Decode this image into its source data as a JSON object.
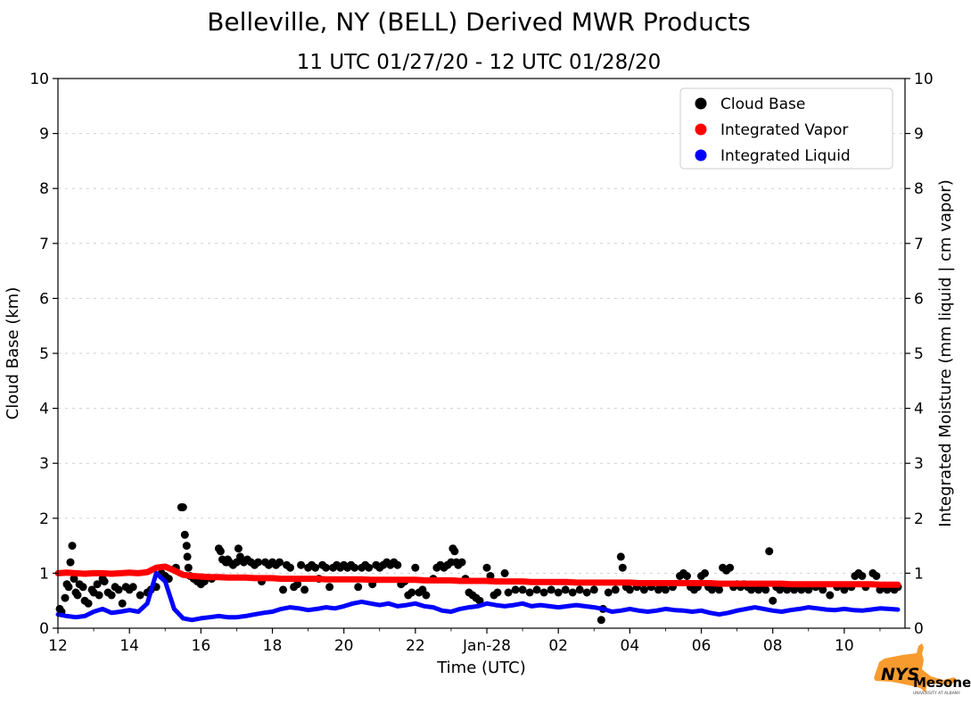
{
  "chart_data": {
    "type": "scatter",
    "title": "Belleville, NY (BELL) Derived MWR Products",
    "subtitle": "11 UTC 01/27/20 - 12 UTC 01/28/20",
    "xlabel": "Time (UTC)",
    "ylabel_left": "Cloud Base (km)",
    "ylabel_right": "Integrated Moisture (mm liquid | cm vapor)",
    "xlim": [
      12,
      35.7
    ],
    "ylim": [
      0,
      10
    ],
    "grid": "horizontal-dashed",
    "xticks": [
      {
        "v": 12,
        "label": "12"
      },
      {
        "v": 14,
        "label": "14"
      },
      {
        "v": 16,
        "label": "16"
      },
      {
        "v": 18,
        "label": "18"
      },
      {
        "v": 20,
        "label": "20"
      },
      {
        "v": 22,
        "label": "22"
      },
      {
        "v": 24,
        "label": "Jan-28"
      },
      {
        "v": 26,
        "label": "02"
      },
      {
        "v": 28,
        "label": "04"
      },
      {
        "v": 30,
        "label": "06"
      },
      {
        "v": 32,
        "label": "08"
      },
      {
        "v": 34,
        "label": "10"
      }
    ],
    "yticks": [
      0,
      1,
      2,
      3,
      4,
      5,
      6,
      7,
      8,
      9,
      10
    ],
    "legend": {
      "position": "upper-right",
      "entries": [
        {
          "label": "Cloud Base",
          "color": "#000000"
        },
        {
          "label": "Integrated Vapor",
          "color": "#ff0000"
        },
        {
          "label": "Integrated Liquid",
          "color": "#0000ff"
        }
      ]
    },
    "series": [
      {
        "name": "Cloud Base",
        "kind": "scatter",
        "color": "#000000",
        "marker_size": 4.5,
        "points": [
          [
            12.05,
            0.35
          ],
          [
            12.1,
            0.3
          ],
          [
            12.2,
            0.55
          ],
          [
            12.25,
            0.8
          ],
          [
            12.3,
            0.75
          ],
          [
            12.35,
            1.2
          ],
          [
            12.4,
            1.5
          ],
          [
            12.45,
            0.9
          ],
          [
            12.5,
            0.65
          ],
          [
            12.55,
            0.6
          ],
          [
            12.6,
            0.8
          ],
          [
            12.7,
            0.75
          ],
          [
            12.75,
            0.5
          ],
          [
            12.85,
            0.45
          ],
          [
            12.95,
            0.7
          ],
          [
            13.0,
            0.65
          ],
          [
            13.1,
            0.8
          ],
          [
            13.15,
            0.6
          ],
          [
            13.25,
            0.9
          ],
          [
            13.3,
            0.85
          ],
          [
            13.4,
            0.65
          ],
          [
            13.5,
            0.6
          ],
          [
            13.6,
            0.75
          ],
          [
            13.7,
            0.7
          ],
          [
            13.8,
            0.45
          ],
          [
            13.9,
            0.75
          ],
          [
            14.0,
            0.7
          ],
          [
            14.1,
            0.75
          ],
          [
            14.3,
            0.6
          ],
          [
            14.5,
            0.65
          ],
          [
            14.6,
            0.7
          ],
          [
            14.75,
            0.75
          ],
          [
            14.9,
            1.0
          ],
          [
            15.0,
            0.95
          ],
          [
            15.1,
            0.9
          ],
          [
            15.3,
            1.1
          ],
          [
            15.45,
            2.2
          ],
          [
            15.5,
            2.2
          ],
          [
            15.55,
            1.7
          ],
          [
            15.6,
            1.5
          ],
          [
            15.62,
            1.3
          ],
          [
            15.65,
            1.1
          ],
          [
            15.7,
            0.95
          ],
          [
            15.8,
            0.9
          ],
          [
            15.9,
            0.85
          ],
          [
            16.0,
            0.8
          ],
          [
            16.1,
            0.85
          ],
          [
            16.3,
            0.9
          ],
          [
            16.5,
            1.45
          ],
          [
            16.55,
            1.4
          ],
          [
            16.6,
            1.25
          ],
          [
            16.7,
            1.2
          ],
          [
            16.75,
            1.25
          ],
          [
            16.8,
            1.2
          ],
          [
            16.9,
            1.15
          ],
          [
            17.0,
            1.2
          ],
          [
            17.05,
            1.45
          ],
          [
            17.1,
            1.3
          ],
          [
            17.2,
            1.2
          ],
          [
            17.3,
            1.25
          ],
          [
            17.4,
            1.2
          ],
          [
            17.5,
            1.15
          ],
          [
            17.6,
            1.2
          ],
          [
            17.7,
            0.85
          ],
          [
            17.8,
            1.2
          ],
          [
            17.9,
            1.15
          ],
          [
            18.0,
            1.2
          ],
          [
            18.1,
            1.15
          ],
          [
            18.2,
            1.2
          ],
          [
            18.3,
            0.7
          ],
          [
            18.4,
            1.15
          ],
          [
            18.5,
            1.1
          ],
          [
            18.6,
            0.75
          ],
          [
            18.7,
            0.8
          ],
          [
            18.8,
            1.15
          ],
          [
            18.9,
            0.7
          ],
          [
            19.0,
            1.1
          ],
          [
            19.1,
            1.15
          ],
          [
            19.2,
            1.1
          ],
          [
            19.3,
            0.9
          ],
          [
            19.4,
            1.15
          ],
          [
            19.5,
            1.1
          ],
          [
            19.6,
            0.75
          ],
          [
            19.7,
            1.1
          ],
          [
            19.8,
            1.15
          ],
          [
            19.9,
            1.1
          ],
          [
            20.0,
            1.15
          ],
          [
            20.1,
            1.1
          ],
          [
            20.2,
            1.15
          ],
          [
            20.3,
            1.1
          ],
          [
            20.4,
            0.75
          ],
          [
            20.5,
            1.1
          ],
          [
            20.6,
            1.15
          ],
          [
            20.7,
            1.1
          ],
          [
            20.8,
            0.8
          ],
          [
            20.9,
            1.15
          ],
          [
            21.0,
            1.1
          ],
          [
            21.1,
            1.15
          ],
          [
            21.2,
            1.2
          ],
          [
            21.3,
            1.15
          ],
          [
            21.4,
            1.2
          ],
          [
            21.5,
            1.15
          ],
          [
            21.6,
            0.8
          ],
          [
            21.7,
            0.85
          ],
          [
            21.8,
            0.6
          ],
          [
            21.9,
            0.65
          ],
          [
            22.0,
            1.1
          ],
          [
            22.1,
            0.65
          ],
          [
            22.2,
            0.7
          ],
          [
            22.3,
            0.6
          ],
          [
            22.5,
            0.9
          ],
          [
            22.6,
            1.1
          ],
          [
            22.7,
            1.15
          ],
          [
            22.8,
            1.1
          ],
          [
            22.9,
            1.15
          ],
          [
            23.0,
            1.2
          ],
          [
            23.05,
            1.45
          ],
          [
            23.1,
            1.4
          ],
          [
            23.15,
            1.2
          ],
          [
            23.2,
            1.15
          ],
          [
            23.3,
            1.2
          ],
          [
            23.4,
            0.9
          ],
          [
            23.5,
            0.65
          ],
          [
            23.6,
            0.6
          ],
          [
            23.7,
            0.55
          ],
          [
            23.8,
            0.5
          ],
          [
            24.0,
            1.1
          ],
          [
            24.1,
            0.95
          ],
          [
            24.2,
            0.6
          ],
          [
            24.3,
            0.65
          ],
          [
            24.5,
            1.0
          ],
          [
            24.6,
            0.65
          ],
          [
            24.8,
            0.7
          ],
          [
            25.0,
            0.7
          ],
          [
            25.2,
            0.65
          ],
          [
            25.4,
            0.7
          ],
          [
            25.6,
            0.65
          ],
          [
            25.8,
            0.7
          ],
          [
            26.0,
            0.65
          ],
          [
            26.2,
            0.7
          ],
          [
            26.4,
            0.65
          ],
          [
            26.6,
            0.7
          ],
          [
            26.8,
            0.65
          ],
          [
            27.0,
            0.7
          ],
          [
            27.2,
            0.15
          ],
          [
            27.25,
            0.35
          ],
          [
            27.4,
            0.65
          ],
          [
            27.6,
            0.7
          ],
          [
            27.75,
            1.3
          ],
          [
            27.8,
            1.1
          ],
          [
            27.9,
            0.75
          ],
          [
            28.0,
            0.7
          ],
          [
            28.2,
            0.75
          ],
          [
            28.4,
            0.7
          ],
          [
            28.6,
            0.75
          ],
          [
            28.8,
            0.7
          ],
          [
            28.9,
            0.75
          ],
          [
            29.0,
            0.7
          ],
          [
            29.2,
            0.75
          ],
          [
            29.4,
            0.95
          ],
          [
            29.5,
            1.0
          ],
          [
            29.6,
            0.95
          ],
          [
            29.7,
            0.75
          ],
          [
            29.8,
            0.7
          ],
          [
            29.9,
            0.75
          ],
          [
            30.0,
            0.95
          ],
          [
            30.1,
            1.0
          ],
          [
            30.2,
            0.75
          ],
          [
            30.3,
            0.7
          ],
          [
            30.4,
            0.75
          ],
          [
            30.5,
            0.7
          ],
          [
            30.6,
            1.1
          ],
          [
            30.7,
            1.05
          ],
          [
            30.8,
            1.1
          ],
          [
            30.9,
            0.75
          ],
          [
            31.0,
            0.8
          ],
          [
            31.1,
            0.75
          ],
          [
            31.2,
            0.8
          ],
          [
            31.3,
            0.75
          ],
          [
            31.4,
            0.7
          ],
          [
            31.5,
            0.75
          ],
          [
            31.6,
            0.7
          ],
          [
            31.7,
            0.75
          ],
          [
            31.8,
            0.7
          ],
          [
            31.9,
            1.4
          ],
          [
            32.0,
            0.5
          ],
          [
            32.1,
            0.75
          ],
          [
            32.2,
            0.7
          ],
          [
            32.3,
            0.75
          ],
          [
            32.4,
            0.7
          ],
          [
            32.5,
            0.75
          ],
          [
            32.6,
            0.7
          ],
          [
            32.7,
            0.75
          ],
          [
            32.8,
            0.7
          ],
          [
            32.9,
            0.75
          ],
          [
            33.0,
            0.7
          ],
          [
            33.2,
            0.75
          ],
          [
            33.4,
            0.7
          ],
          [
            33.6,
            0.6
          ],
          [
            33.8,
            0.75
          ],
          [
            34.0,
            0.7
          ],
          [
            34.2,
            0.75
          ],
          [
            34.3,
            0.95
          ],
          [
            34.4,
            1.0
          ],
          [
            34.5,
            0.95
          ],
          [
            34.6,
            0.75
          ],
          [
            34.8,
            1.0
          ],
          [
            34.9,
            0.95
          ],
          [
            35.0,
            0.7
          ],
          [
            35.1,
            0.75
          ],
          [
            35.2,
            0.7
          ],
          [
            35.3,
            0.75
          ],
          [
            35.4,
            0.7
          ],
          [
            35.5,
            0.75
          ]
        ]
      },
      {
        "name": "Integrated Vapor",
        "kind": "line",
        "color": "#ff0000",
        "width": 7,
        "x_start": 12,
        "x_step": 0.25,
        "values": [
          1.0,
          1.01,
          1.0,
          0.99,
          1.0,
          1.0,
          0.99,
          1.0,
          1.01,
          1.0,
          1.02,
          1.1,
          1.12,
          1.05,
          0.97,
          0.95,
          0.94,
          0.93,
          0.93,
          0.92,
          0.92,
          0.92,
          0.91,
          0.91,
          0.91,
          0.9,
          0.9,
          0.9,
          0.9,
          0.9,
          0.89,
          0.89,
          0.89,
          0.89,
          0.89,
          0.88,
          0.88,
          0.88,
          0.88,
          0.88,
          0.88,
          0.87,
          0.87,
          0.87,
          0.87,
          0.86,
          0.86,
          0.86,
          0.86,
          0.85,
          0.85,
          0.85,
          0.85,
          0.84,
          0.84,
          0.84,
          0.84,
          0.84,
          0.83,
          0.83,
          0.83,
          0.83,
          0.83,
          0.83,
          0.83,
          0.82,
          0.82,
          0.82,
          0.82,
          0.82,
          0.82,
          0.82,
          0.82,
          0.82,
          0.81,
          0.81,
          0.81,
          0.81,
          0.81,
          0.81,
          0.81,
          0.81,
          0.8,
          0.8,
          0.8,
          0.8,
          0.8,
          0.8,
          0.8,
          0.8,
          0.8,
          0.8,
          0.79,
          0.79,
          0.79
        ]
      },
      {
        "name": "Integrated Liquid",
        "kind": "line",
        "color": "#0000ff",
        "width": 5,
        "x_start": 12,
        "x_step": 0.25,
        "values": [
          0.25,
          0.22,
          0.2,
          0.22,
          0.3,
          0.35,
          0.28,
          0.3,
          0.33,
          0.3,
          0.45,
          1.0,
          0.85,
          0.35,
          0.18,
          0.15,
          0.18,
          0.2,
          0.22,
          0.2,
          0.2,
          0.22,
          0.25,
          0.28,
          0.3,
          0.35,
          0.38,
          0.36,
          0.33,
          0.35,
          0.38,
          0.36,
          0.4,
          0.45,
          0.48,
          0.45,
          0.42,
          0.45,
          0.4,
          0.42,
          0.45,
          0.4,
          0.38,
          0.32,
          0.3,
          0.35,
          0.38,
          0.4,
          0.45,
          0.42,
          0.4,
          0.42,
          0.45,
          0.4,
          0.42,
          0.4,
          0.38,
          0.4,
          0.42,
          0.4,
          0.38,
          0.35,
          0.3,
          0.32,
          0.35,
          0.32,
          0.3,
          0.32,
          0.35,
          0.33,
          0.32,
          0.3,
          0.32,
          0.28,
          0.25,
          0.28,
          0.32,
          0.35,
          0.38,
          0.35,
          0.32,
          0.3,
          0.33,
          0.35,
          0.38,
          0.36,
          0.34,
          0.33,
          0.35,
          0.33,
          0.32,
          0.34,
          0.36,
          0.35,
          0.34
        ]
      }
    ]
  },
  "logo": {
    "text_nys": "NYS",
    "text_mesonet": "Mesonet",
    "tagline": "UNIVERSITY AT ALBANY",
    "orange": "#F79B2E",
    "blue": "#1C2E7B"
  }
}
